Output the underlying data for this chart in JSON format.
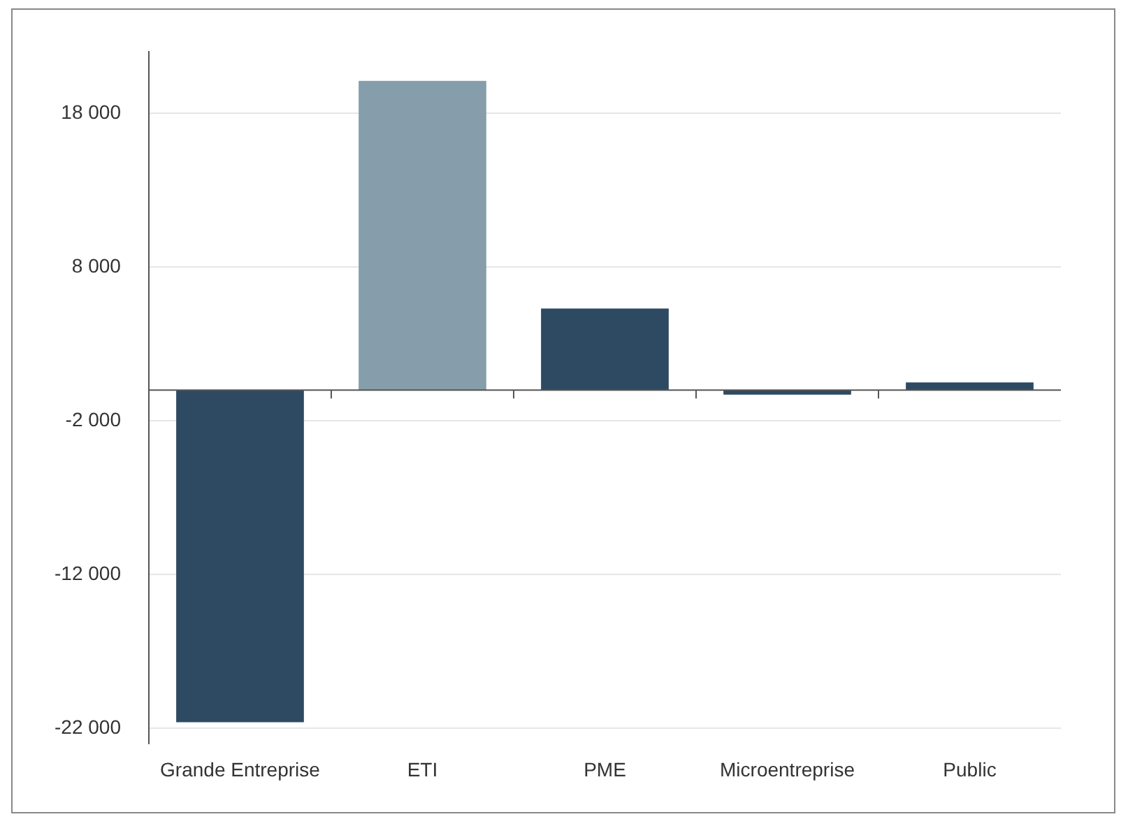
{
  "chart_data": {
    "type": "bar",
    "categories": [
      "Grande Entreprise",
      "ETI",
      "PME",
      "Microentreprise",
      "Public"
    ],
    "values": [
      -21600,
      20100,
      5300,
      -300,
      500
    ],
    "colors": [
      "#2e4a63",
      "#869eab",
      "#2e4a63",
      "#2e4a63",
      "#2e4a63"
    ],
    "ylim": [
      -23000,
      22000
    ],
    "yticks": [
      {
        "value": 18000,
        "label": "18 000"
      },
      {
        "value": 8000,
        "label": "8 000"
      },
      {
        "value": -2000,
        "label": "-2 000"
      },
      {
        "value": -12000,
        "label": "-12 000"
      },
      {
        "value": -22000,
        "label": "-22 000"
      }
    ],
    "grid": "y",
    "legend": false
  }
}
